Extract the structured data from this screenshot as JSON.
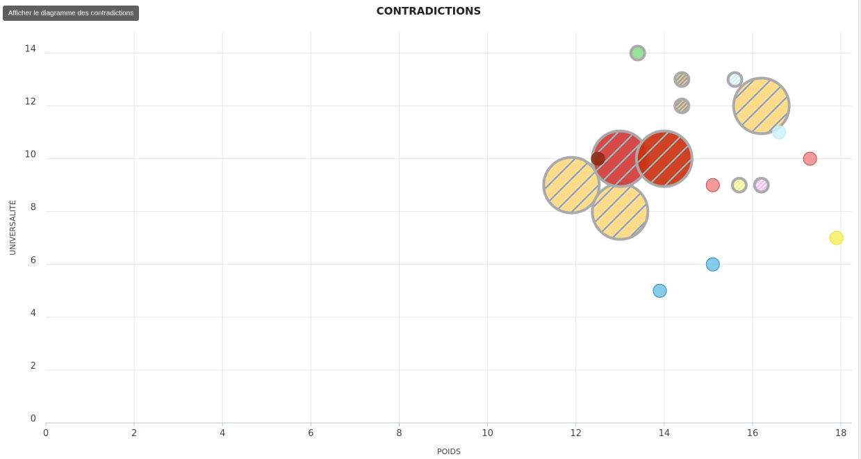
{
  "toolbar": {
    "show_diagram_label": "Afficher le diagramme des contradictions"
  },
  "chart_data": {
    "type": "scatter",
    "title": "CONTRADICTIONS",
    "xlabel": "POIDS",
    "ylabel": "UNIVERSALITÉ",
    "xlim": [
      0,
      18.25
    ],
    "ylim": [
      0,
      14.8
    ],
    "xticks": [
      0,
      2,
      4,
      6,
      8,
      10,
      12,
      14,
      16,
      18
    ],
    "yticks": [
      0,
      2,
      4,
      6,
      8,
      10,
      12,
      14
    ],
    "grid": true,
    "points": [
      {
        "x": 11.9,
        "y": 9,
        "size": "large",
        "fill": "#ffd980",
        "stroke": "#aaaaaa",
        "hatch": "#6b8fd6"
      },
      {
        "x": 13.0,
        "y": 8,
        "size": "large",
        "fill": "#ffd980",
        "stroke": "#aaaaaa",
        "hatch": "#6b8fd6"
      },
      {
        "x": 13.0,
        "y": 10,
        "size": "large",
        "fill": "#d23a3a",
        "stroke": "#aaaaaa",
        "hatch": "#7cc8d0"
      },
      {
        "x": 14.0,
        "y": 10,
        "size": "large",
        "fill": "#cc3010",
        "stroke": "#aaaaaa",
        "hatch": "#7cc8d0"
      },
      {
        "x": 16.2,
        "y": 12,
        "size": "large",
        "fill": "#ffd980",
        "stroke": "#aaaaaa",
        "hatch": "#6b8fd6"
      },
      {
        "x": 12.5,
        "y": 10,
        "size": "small",
        "fill": "#8b2a12",
        "stroke": "#8b2a12"
      },
      {
        "x": 13.4,
        "y": 14,
        "size": "ringed",
        "fill": "#8fe08f",
        "stroke": "#aaaaaa"
      },
      {
        "x": 14.4,
        "y": 13,
        "size": "ringed",
        "fill": "#a89a80",
        "stroke": "#aaaaaa",
        "hatch": "#ddd0b0"
      },
      {
        "x": 14.4,
        "y": 12,
        "size": "ringed",
        "fill": "#a89a80",
        "stroke": "#aaaaaa",
        "hatch": "#ddd0b0"
      },
      {
        "x": 15.6,
        "y": 13,
        "size": "ringed",
        "fill": "#cdeef2",
        "stroke": "#aaaaaa",
        "hatch": "#ffffff"
      },
      {
        "x": 16.6,
        "y": 11,
        "size": "small",
        "fill": "#cdf3f8",
        "stroke": "#bfe8ee"
      },
      {
        "x": 17.3,
        "y": 10,
        "size": "small",
        "fill": "#f08a8a",
        "stroke": "#cc4444"
      },
      {
        "x": 15.1,
        "y": 9,
        "size": "small",
        "fill": "#f08a8a",
        "stroke": "#cc4444"
      },
      {
        "x": 15.7,
        "y": 9,
        "size": "ringed",
        "fill": "#f5f070",
        "stroke": "#aaaaaa",
        "hatch": "#ffffff"
      },
      {
        "x": 16.2,
        "y": 9,
        "size": "ringed",
        "fill": "#f5b6ee",
        "stroke": "#aaaaaa",
        "hatch": "#ffffff"
      },
      {
        "x": 17.9,
        "y": 7,
        "size": "small",
        "fill": "#f7f060",
        "stroke": "#e8df30"
      },
      {
        "x": 15.1,
        "y": 6,
        "size": "small",
        "fill": "#6ec3e6",
        "stroke": "#2a88b8"
      },
      {
        "x": 13.9,
        "y": 5,
        "size": "small",
        "fill": "#6ec3e6",
        "stroke": "#2a88b8"
      }
    ]
  }
}
